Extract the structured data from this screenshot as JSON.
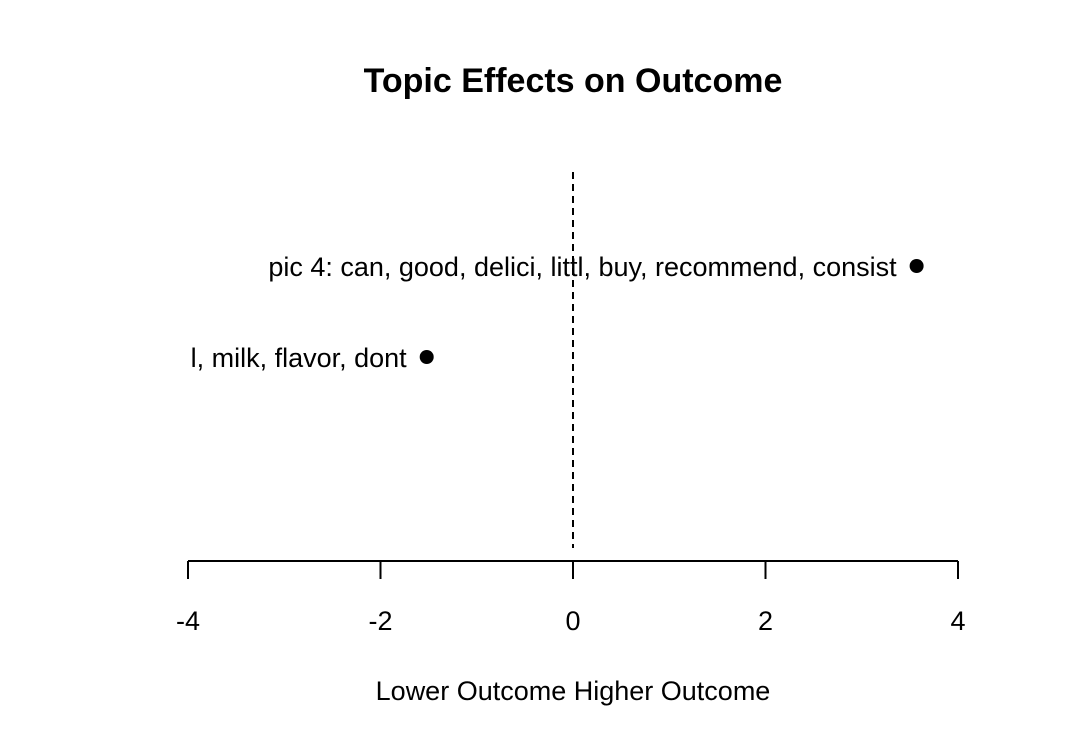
{
  "chart_data": {
    "type": "scatter",
    "title": "Topic Effects on Outcome",
    "xlabel": "Lower Outcome Higher Outcome",
    "ylabel": "",
    "xlim": [
      -4,
      4
    ],
    "xticks": [
      -4,
      -2,
      0,
      2,
      4
    ],
    "tick_labels": [
      "-4",
      "-2",
      "0",
      "2",
      "4"
    ],
    "reference_line": {
      "x": 0,
      "style": "dashed"
    },
    "grid": false,
    "points": [
      {
        "label": "pic 4: can, good, delici, littl, buy, recommend, consist",
        "x": 3.57
      },
      {
        "label": "l, milk, flavor, dont",
        "x": -1.52
      }
    ]
  }
}
